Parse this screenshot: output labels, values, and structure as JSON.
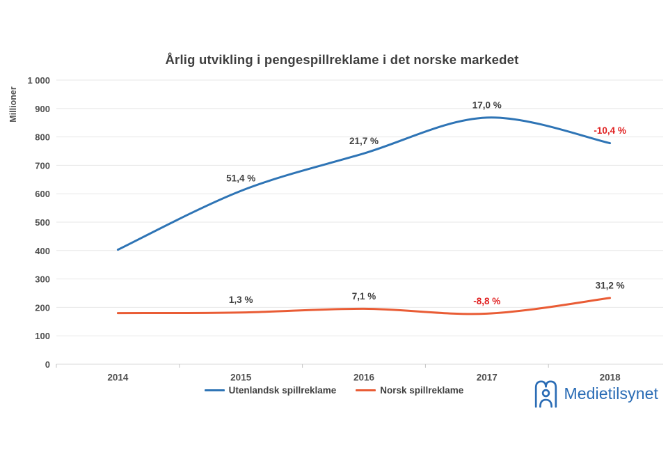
{
  "title": "Årlig utvikling i pengespillreklame i det norske markedet",
  "chart_data": {
    "type": "line",
    "title": "Årlig utvikling i pengespillreklame i det norske markedet",
    "xlabel": "",
    "ylabel": "Millioner",
    "ylim": [
      0,
      1000
    ],
    "y_tick_interval": 100,
    "y_tick_labels": [
      "0",
      "100",
      "200",
      "300",
      "400",
      "500",
      "600",
      "700",
      "800",
      "900",
      "1 000"
    ],
    "categories": [
      "2014",
      "2015",
      "2016",
      "2017",
      "2018"
    ],
    "grid": true,
    "legend_position": "bottom",
    "line_style": "smooth",
    "series": [
      {
        "name": "Utenlandsk spillreklame",
        "color": "#2e74b5",
        "values": [
          403,
          610,
          742,
          868,
          778
        ],
        "point_labels": [
          "",
          "51,4 %",
          "21,7 %",
          "17,0 %",
          "-10,4 %"
        ],
        "point_label_colors": [
          "",
          "#404040",
          "#404040",
          "#404040",
          "#e02020"
        ]
      },
      {
        "name": "Norsk spillreklame",
        "color": "#e95c35",
        "values": [
          180,
          182,
          195,
          178,
          233
        ],
        "point_labels": [
          "",
          "1,3 %",
          "7,1 %",
          "-8,8 %",
          "31,2 %"
        ],
        "point_label_colors": [
          "",
          "#404040",
          "#404040",
          "#e02020",
          "#404040"
        ]
      }
    ]
  },
  "logo": {
    "text": "Medietilsynet",
    "color": "#2a6cb5"
  },
  "colors": {
    "background": "#ffffff",
    "gridline": "#e7e7e7",
    "axis_line": "#d9d9d9",
    "tick_mark": "#c4c4c4",
    "title_text": "#3f3f3f",
    "axis_text": "#4f4f4f"
  }
}
